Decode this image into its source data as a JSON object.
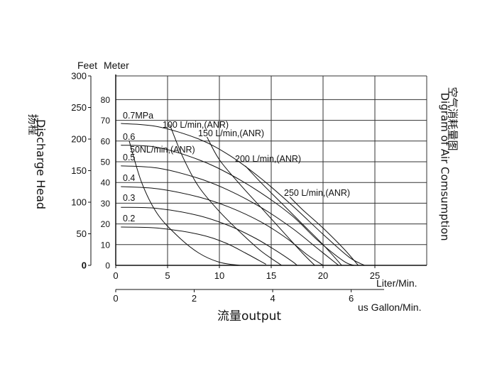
{
  "chart_data": {
    "type": "line",
    "left_axis_feet": {
      "label": "Feet",
      "ticks": [
        0,
        50,
        100,
        150,
        200,
        250,
        300
      ],
      "range": [
        0,
        300
      ]
    },
    "left_axis_meter": {
      "label": "Meter",
      "ticks": [
        0,
        10,
        20,
        30,
        40,
        50,
        60,
        70,
        80
      ],
      "range": [
        0,
        91.44
      ]
    },
    "y_title_cn": "扬程",
    "y_title_en": "Discharge Head",
    "right_title_cn": "空气消耗量图",
    "right_title_en": "Digram of Air Comsumption",
    "x_axis_liter": {
      "label": "Liter/Min.",
      "ticks": [
        0,
        5,
        10,
        15,
        20,
        25
      ],
      "range": [
        0,
        30
      ]
    },
    "x_axis_gallon": {
      "label": "us Gallon/Min.",
      "ticks": [
        0,
        2,
        4,
        6
      ],
      "range": [
        0,
        7.925
      ]
    },
    "x_title": "流量output",
    "pressure_series": [
      {
        "name": "0.7MPa",
        "points": [
          [
            0.5,
            68.5
          ],
          [
            4,
            67
          ],
          [
            8,
            61
          ],
          [
            11,
            53
          ],
          [
            14,
            42
          ],
          [
            17,
            29
          ],
          [
            20,
            15
          ],
          [
            22.5,
            4
          ],
          [
            24,
            0
          ]
        ]
      },
      {
        "name": "0.6",
        "points": [
          [
            0.5,
            58
          ],
          [
            4,
            57
          ],
          [
            8,
            51
          ],
          [
            11,
            44
          ],
          [
            14,
            35
          ],
          [
            17,
            24
          ],
          [
            19.5,
            12
          ],
          [
            22,
            2
          ],
          [
            23,
            0
          ]
        ]
      },
      {
        "name": "0.5",
        "points": [
          [
            0.5,
            48
          ],
          [
            4,
            47
          ],
          [
            8,
            42
          ],
          [
            11,
            36
          ],
          [
            14,
            28
          ],
          [
            17,
            18
          ],
          [
            19.5,
            8
          ],
          [
            21.5,
            0
          ]
        ]
      },
      {
        "name": "0.4",
        "points": [
          [
            0.5,
            38
          ],
          [
            4,
            37
          ],
          [
            8,
            33
          ],
          [
            11,
            28
          ],
          [
            14,
            21
          ],
          [
            16.5,
            13
          ],
          [
            18.5,
            5
          ],
          [
            20,
            0
          ]
        ]
      },
      {
        "name": "0.3",
        "points": [
          [
            0.5,
            28
          ],
          [
            4,
            27.5
          ],
          [
            8,
            24
          ],
          [
            11,
            19
          ],
          [
            13.5,
            13
          ],
          [
            15.5,
            7
          ],
          [
            17,
            2
          ],
          [
            17.5,
            0
          ]
        ]
      },
      {
        "name": "0.2",
        "points": [
          [
            0.5,
            18.5
          ],
          [
            4,
            18
          ],
          [
            8,
            15
          ],
          [
            10.5,
            11
          ],
          [
            12.5,
            6
          ],
          [
            14.5,
            0.5
          ]
        ]
      }
    ],
    "air_consumption_series": [
      {
        "name": "50NL/min,(ANR)",
        "points": [
          [
            1.3,
            60
          ],
          [
            2.5,
            40
          ],
          [
            4,
            25
          ],
          [
            6,
            14
          ],
          [
            8,
            6
          ],
          [
            10,
            1.5
          ],
          [
            12,
            0
          ]
        ]
      },
      {
        "name": "100 L/min,(ANR)",
        "points": [
          [
            5.2,
            68
          ],
          [
            6.5,
            52
          ],
          [
            8,
            38
          ],
          [
            10,
            26
          ],
          [
            12,
            16
          ],
          [
            14,
            7
          ],
          [
            16,
            0
          ]
        ]
      },
      {
        "name": "150 L/min,(ANR)",
        "points": [
          [
            8.8,
            62
          ],
          [
            10,
            51
          ],
          [
            12,
            39
          ],
          [
            14,
            28
          ],
          [
            16,
            17
          ],
          [
            18,
            6
          ],
          [
            19.2,
            0
          ]
        ]
      },
      {
        "name": "200 L/min,(ANR)",
        "points": [
          [
            12.5,
            48
          ],
          [
            14,
            40
          ],
          [
            16,
            30
          ],
          [
            18,
            20
          ],
          [
            20,
            10
          ],
          [
            21.8,
            0
          ]
        ]
      },
      {
        "name": "250 L/min,(ANR)",
        "points": [
          [
            16.8,
            33
          ],
          [
            18,
            27
          ],
          [
            20,
            18
          ],
          [
            22,
            8
          ],
          [
            23.4,
            0
          ]
        ]
      }
    ],
    "grid": true
  }
}
